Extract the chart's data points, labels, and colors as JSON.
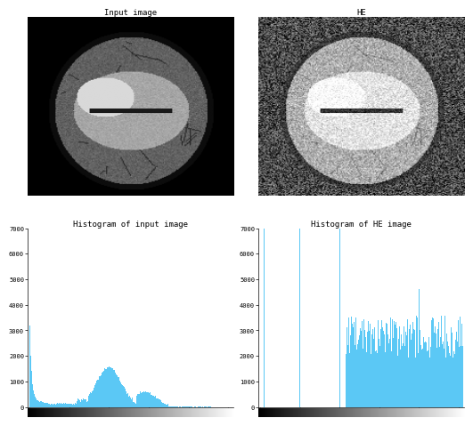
{
  "title_input": "Input image",
  "title_he": "HE",
  "hist_title_input": "Histogram of input image",
  "hist_title_he": "Histogram of HE image",
  "hist_color": "#5bc8f5",
  "hist_input_ylim": [
    0,
    7000
  ],
  "hist_he_ylim": [
    0,
    7000
  ],
  "hist_xlim": [
    0,
    255
  ],
  "hist_xticks": [
    0,
    50,
    100,
    150,
    200,
    250
  ],
  "hist_yticks_input": [
    0,
    1000,
    2000,
    3000,
    4000,
    5000,
    6000,
    7000
  ],
  "hist_yticks_he": [
    0,
    1000,
    2000,
    3000,
    4000,
    5000,
    6000,
    7000
  ],
  "title_fontsize": 6.5,
  "tick_fontsize": 5,
  "background_color": "#ffffff"
}
